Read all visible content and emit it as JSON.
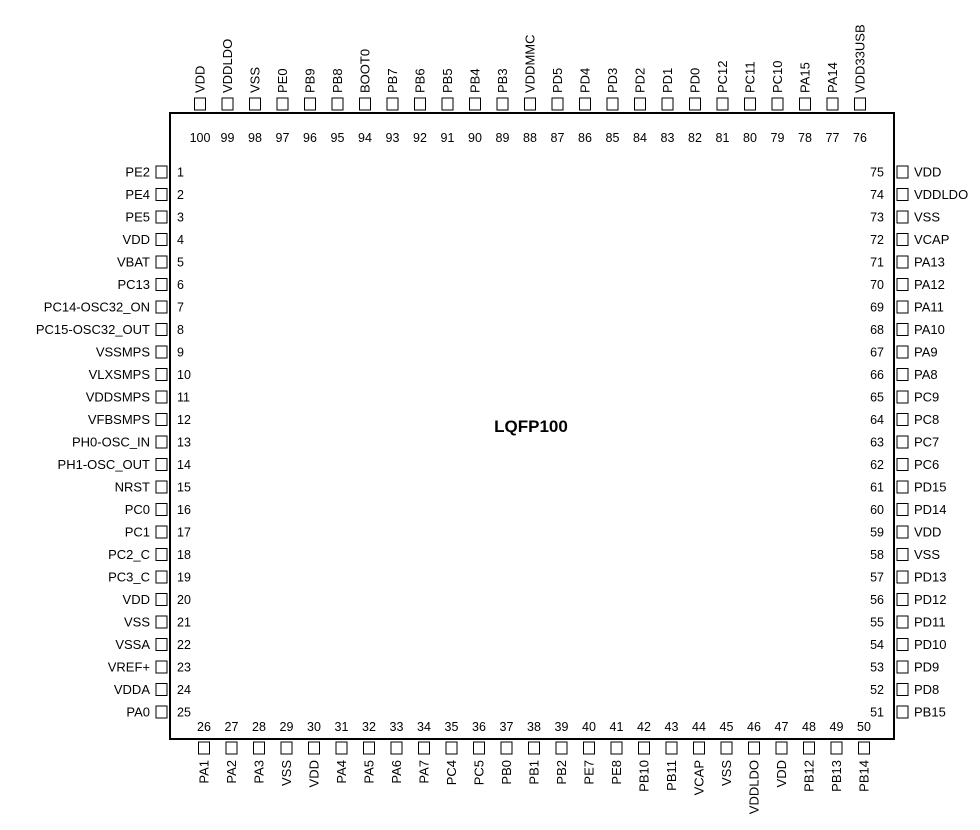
{
  "package": {
    "name": "LQFP100"
  },
  "pins": {
    "left": [
      {
        "num": "1",
        "name": "PE2"
      },
      {
        "num": "2",
        "name": "PE4"
      },
      {
        "num": "3",
        "name": "PE5"
      },
      {
        "num": "4",
        "name": "VDD"
      },
      {
        "num": "5",
        "name": "VBAT"
      },
      {
        "num": "6",
        "name": "PC13"
      },
      {
        "num": "7",
        "name": "PC14-OSC32_ON"
      },
      {
        "num": "8",
        "name": "PC15-OSC32_OUT"
      },
      {
        "num": "9",
        "name": "VSSMPS"
      },
      {
        "num": "10",
        "name": "VLXSMPS"
      },
      {
        "num": "11",
        "name": "VDDSMPS"
      },
      {
        "num": "12",
        "name": "VFBSMPS"
      },
      {
        "num": "13",
        "name": "PH0-OSC_IN"
      },
      {
        "num": "14",
        "name": "PH1-OSC_OUT"
      },
      {
        "num": "15",
        "name": "NRST"
      },
      {
        "num": "16",
        "name": "PC0"
      },
      {
        "num": "17",
        "name": "PC1"
      },
      {
        "num": "18",
        "name": "PC2_C"
      },
      {
        "num": "19",
        "name": "PC3_C"
      },
      {
        "num": "20",
        "name": "VDD"
      },
      {
        "num": "21",
        "name": "VSS"
      },
      {
        "num": "22",
        "name": "VSSA"
      },
      {
        "num": "23",
        "name": "VREF+"
      },
      {
        "num": "24",
        "name": "VDDA"
      },
      {
        "num": "25",
        "name": "PA0"
      }
    ],
    "bottom": [
      {
        "num": "26",
        "name": "PA1"
      },
      {
        "num": "27",
        "name": "PA2"
      },
      {
        "num": "28",
        "name": "PA3"
      },
      {
        "num": "29",
        "name": "VSS"
      },
      {
        "num": "30",
        "name": "VDD"
      },
      {
        "num": "31",
        "name": "PA4"
      },
      {
        "num": "32",
        "name": "PA5"
      },
      {
        "num": "33",
        "name": "PA6"
      },
      {
        "num": "34",
        "name": "PA7"
      },
      {
        "num": "35",
        "name": "PC4"
      },
      {
        "num": "36",
        "name": "PC5"
      },
      {
        "num": "37",
        "name": "PB0"
      },
      {
        "num": "38",
        "name": "PB1"
      },
      {
        "num": "39",
        "name": "PB2"
      },
      {
        "num": "40",
        "name": "PE7"
      },
      {
        "num": "41",
        "name": "PE8"
      },
      {
        "num": "42",
        "name": "PB10"
      },
      {
        "num": "43",
        "name": "PB11"
      },
      {
        "num": "44",
        "name": "VCAP"
      },
      {
        "num": "45",
        "name": "VSS"
      },
      {
        "num": "46",
        "name": "VDDLDO"
      },
      {
        "num": "47",
        "name": "VDD"
      },
      {
        "num": "48",
        "name": "PB12"
      },
      {
        "num": "49",
        "name": "PB13"
      },
      {
        "num": "50",
        "name": "PB14"
      }
    ],
    "right": [
      {
        "num": "51",
        "name": "PB15"
      },
      {
        "num": "52",
        "name": "PD8"
      },
      {
        "num": "53",
        "name": "PD9"
      },
      {
        "num": "54",
        "name": "PD10"
      },
      {
        "num": "55",
        "name": "PD11"
      },
      {
        "num": "56",
        "name": "PD12"
      },
      {
        "num": "57",
        "name": "PD13"
      },
      {
        "num": "58",
        "name": "VSS"
      },
      {
        "num": "59",
        "name": "VDD"
      },
      {
        "num": "60",
        "name": "PD14"
      },
      {
        "num": "61",
        "name": "PD15"
      },
      {
        "num": "62",
        "name": "PC6"
      },
      {
        "num": "63",
        "name": "PC7"
      },
      {
        "num": "64",
        "name": "PC8"
      },
      {
        "num": "65",
        "name": "PC9"
      },
      {
        "num": "66",
        "name": "PA8"
      },
      {
        "num": "67",
        "name": "PA9"
      },
      {
        "num": "68",
        "name": "PA10"
      },
      {
        "num": "69",
        "name": "PA11"
      },
      {
        "num": "70",
        "name": "PA12"
      },
      {
        "num": "71",
        "name": "PA13"
      },
      {
        "num": "72",
        "name": "VCAP"
      },
      {
        "num": "73",
        "name": "VSS"
      },
      {
        "num": "74",
        "name": "VDDLDO"
      },
      {
        "num": "75",
        "name": "VDD"
      }
    ],
    "top": [
      {
        "num": "76",
        "name": "VDD33USB"
      },
      {
        "num": "77",
        "name": "PA14"
      },
      {
        "num": "78",
        "name": "PA15"
      },
      {
        "num": "79",
        "name": "PC10"
      },
      {
        "num": "80",
        "name": "PC11"
      },
      {
        "num": "81",
        "name": "PC12"
      },
      {
        "num": "82",
        "name": "PD0"
      },
      {
        "num": "83",
        "name": "PD1"
      },
      {
        "num": "84",
        "name": "PD2"
      },
      {
        "num": "85",
        "name": "PD3"
      },
      {
        "num": "86",
        "name": "PD4"
      },
      {
        "num": "87",
        "name": "PD5"
      },
      {
        "num": "88",
        "name": "VDDMMC"
      },
      {
        "num": "89",
        "name": "PB3"
      },
      {
        "num": "90",
        "name": "PB4"
      },
      {
        "num": "91",
        "name": "PB5"
      },
      {
        "num": "92",
        "name": "PB6"
      },
      {
        "num": "93",
        "name": "PB7"
      },
      {
        "num": "94",
        "name": "BOOT0"
      },
      {
        "num": "95",
        "name": "PB8"
      },
      {
        "num": "96",
        "name": "PB9"
      },
      {
        "num": "97",
        "name": "PE0"
      },
      {
        "num": "98",
        "name": "VSS"
      },
      {
        "num": "99",
        "name": "VDDLDO"
      },
      {
        "num": "100",
        "name": "VDD"
      }
    ]
  }
}
